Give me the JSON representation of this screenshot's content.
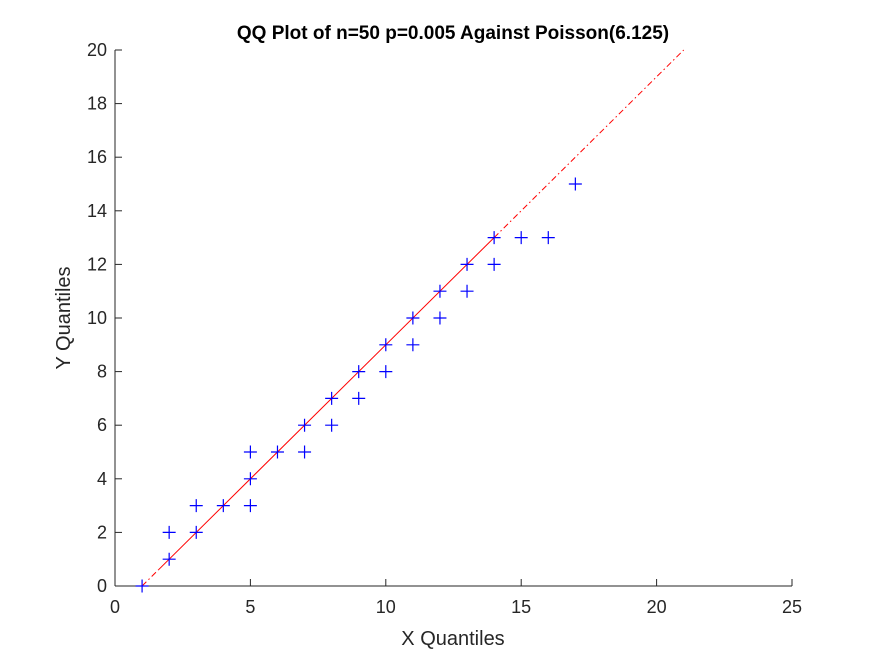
{
  "chart_data": {
    "type": "scatter",
    "title": "QQ Plot of n=50 p=0.005 Against Poisson(6.125)",
    "xlabel": "X Quantiles",
    "ylabel": "Y Quantiles",
    "xlim": [
      0,
      25
    ],
    "ylim": [
      0,
      20
    ],
    "xticks": [
      0,
      5,
      10,
      15,
      20,
      25
    ],
    "yticks": [
      0,
      2,
      4,
      6,
      8,
      10,
      12,
      14,
      16,
      18,
      20
    ],
    "grid": false,
    "marker": "+",
    "marker_color": "#0000ff",
    "points": [
      [
        1,
        0
      ],
      [
        2,
        1
      ],
      [
        2,
        2
      ],
      [
        3,
        2
      ],
      [
        3,
        3
      ],
      [
        4,
        3
      ],
      [
        5,
        3
      ],
      [
        5,
        4
      ],
      [
        5,
        5
      ],
      [
        6,
        5
      ],
      [
        7,
        5
      ],
      [
        7,
        6
      ],
      [
        8,
        6
      ],
      [
        8,
        7
      ],
      [
        9,
        7
      ],
      [
        9,
        8
      ],
      [
        10,
        8
      ],
      [
        10,
        9
      ],
      [
        11,
        9
      ],
      [
        11,
        10
      ],
      [
        12,
        10
      ],
      [
        12,
        11
      ],
      [
        13,
        11
      ],
      [
        13,
        12
      ],
      [
        14,
        12
      ],
      [
        14,
        13
      ],
      [
        15,
        13
      ],
      [
        16,
        13
      ],
      [
        17,
        15
      ]
    ],
    "reference_line": {
      "color": "#ff0000",
      "solid_from": [
        1.6,
        0.6
      ],
      "solid_to": [
        14.0,
        13.0
      ],
      "dashed_segments": [
        [
          [
            1.0,
            0.0
          ],
          [
            1.6,
            0.6
          ]
        ],
        [
          [
            14.0,
            13.0
          ],
          [
            21.0,
            20.0
          ]
        ]
      ]
    }
  }
}
